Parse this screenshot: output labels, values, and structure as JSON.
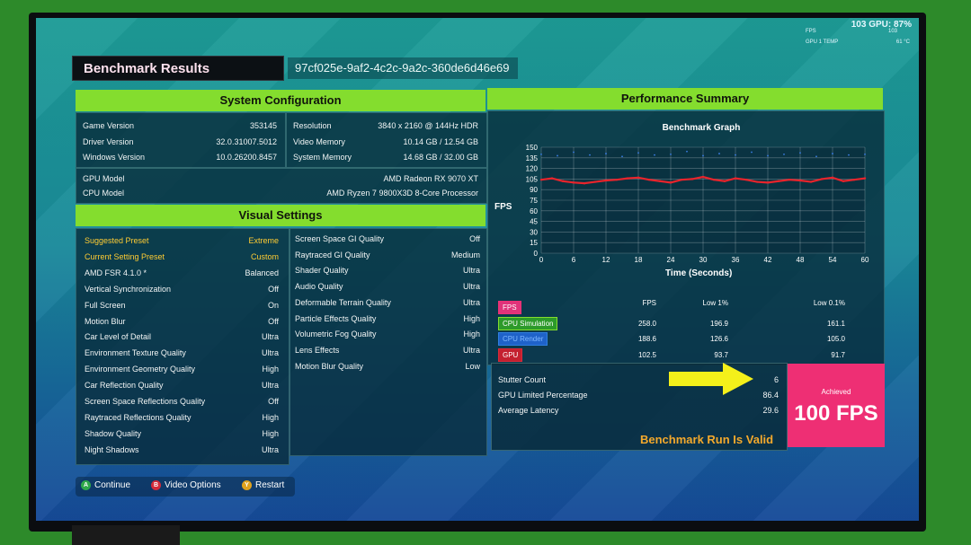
{
  "overlay": {
    "top": "103 GPU: 87%",
    "fps_label": "FPS",
    "fps_value": "103",
    "gpu_temp_label": "GPU 1 TEMP",
    "gpu_temp_value": "61 °C"
  },
  "header": {
    "title": "Benchmark Results",
    "run_id": "97cf025e-9af2-4c2c-9a2c-360de6d46e69"
  },
  "system": {
    "heading": "System Configuration",
    "left": [
      {
        "label": "Game Version",
        "value": "353145"
      },
      {
        "label": "Driver Version",
        "value": "32.0.31007.5012"
      },
      {
        "label": "Windows Version",
        "value": "10.0.26200.8457"
      }
    ],
    "right": [
      {
        "label": "Resolution",
        "value": "3840 x 2160 @ 144Hz HDR"
      },
      {
        "label": "Video Memory",
        "value": "10.14 GB / 12.54 GB"
      },
      {
        "label": "System Memory",
        "value": "14.68 GB / 32.00 GB"
      }
    ],
    "hw": [
      {
        "label": "GPU Model",
        "value": "AMD Radeon RX 9070 XT"
      },
      {
        "label": "CPU Model",
        "value": "AMD Ryzen 7 9800X3D 8-Core Processor"
      }
    ]
  },
  "visual": {
    "heading": "Visual Settings",
    "left": [
      {
        "label": "Suggested Preset",
        "value": "Extreme"
      },
      {
        "label": "Current Setting Preset",
        "value": "Custom"
      },
      {
        "label": "AMD FSR 4.1.0 *",
        "value": "Balanced"
      },
      {
        "label": "Vertical Synchronization",
        "value": "Off"
      },
      {
        "label": "Full Screen",
        "value": "On"
      },
      {
        "label": "Motion Blur",
        "value": "Off"
      },
      {
        "label": "Car Level of Detail",
        "value": "Ultra"
      },
      {
        "label": "Environment Texture Quality",
        "value": "Ultra"
      },
      {
        "label": "Environment Geometry Quality",
        "value": "High"
      },
      {
        "label": "Car Reflection Quality",
        "value": "Ultra"
      },
      {
        "label": "Screen Space Reflections Quality",
        "value": "Off"
      },
      {
        "label": "Raytraced Reflections Quality",
        "value": "High"
      },
      {
        "label": "Shadow Quality",
        "value": "High"
      },
      {
        "label": "Night Shadows",
        "value": "Ultra"
      }
    ],
    "right": [
      {
        "label": "Screen Space GI Quality",
        "value": "Off"
      },
      {
        "label": "Raytraced GI Quality",
        "value": "Medium"
      },
      {
        "label": "Shader Quality",
        "value": "Ultra"
      },
      {
        "label": "Audio Quality",
        "value": "Ultra"
      },
      {
        "label": "Deformable Terrain Quality",
        "value": "Ultra"
      },
      {
        "label": "Particle Effects Quality",
        "value": "High"
      },
      {
        "label": "Volumetric Fog Quality",
        "value": "High"
      },
      {
        "label": "Lens Effects",
        "value": "Ultra"
      },
      {
        "label": "Motion Blur Quality",
        "value": "Low"
      }
    ]
  },
  "performance": {
    "heading": "Performance Summary",
    "graph_title": "Benchmark Graph",
    "ylabel": "FPS",
    "xlabel": "Time (Seconds)",
    "columns": [
      "FPS",
      "Low 1%",
      "Low 0.1%"
    ],
    "rows": [
      {
        "name": "FPS",
        "color": "#ee2f74",
        "values": [
          "",
          "",
          ""
        ]
      },
      {
        "name": "CPU Simulation",
        "color": "#84dd2e",
        "values": [
          "258.0",
          "196.9",
          "161.1"
        ]
      },
      {
        "name": "CPU Render",
        "color": "#2f7fe0",
        "values": [
          "188.6",
          "126.6",
          "105.0"
        ]
      },
      {
        "name": "GPU",
        "color": "#d92a3a",
        "values": [
          "102.5",
          "93.7",
          "91.7"
        ]
      }
    ],
    "stats": [
      {
        "label": "Stutter Count",
        "value": "6"
      },
      {
        "label": "GPU Limited Percentage",
        "value": "86.4"
      },
      {
        "label": "Average Latency",
        "value": "29.6"
      }
    ],
    "achieved_label": "Achieved",
    "achieved_value": "100 FPS",
    "valid_text": "Benchmark Run Is Valid"
  },
  "chart_data": {
    "type": "line",
    "title": "Benchmark Graph",
    "xlabel": "Time (Seconds)",
    "ylabel": "FPS",
    "xlim": [
      0,
      60
    ],
    "ylim": [
      0,
      150
    ],
    "xticks": [
      "0",
      "6",
      "12",
      "18",
      "24",
      "30",
      "36",
      "42",
      "48",
      "54",
      "60"
    ],
    "yticks": [
      "0",
      "15",
      "30",
      "45",
      "60",
      "75",
      "90",
      "105",
      "120",
      "135",
      "150"
    ],
    "grid": true,
    "series": [
      {
        "name": "GPU",
        "color": "#e8242c",
        "x": [
          0,
          2,
          4,
          6,
          8,
          10,
          12,
          14,
          16,
          18,
          20,
          22,
          24,
          26,
          28,
          30,
          32,
          34,
          36,
          38,
          40,
          42,
          44,
          46,
          48,
          50,
          52,
          54,
          56,
          58,
          60
        ],
        "values": [
          104,
          106,
          102,
          100,
          99,
          101,
          103,
          104,
          106,
          107,
          104,
          102,
          100,
          104,
          105,
          108,
          104,
          102,
          106,
          104,
          101,
          100,
          102,
          104,
          103,
          101,
          105,
          107,
          102,
          104,
          106
        ]
      },
      {
        "name": "CPU Render",
        "color": "#3c7fe6",
        "x": [
          0,
          3,
          6,
          9,
          12,
          15,
          18,
          21,
          24,
          27,
          30,
          33,
          36,
          39,
          42,
          45,
          48,
          51,
          54,
          57,
          60
        ],
        "values": [
          140,
          138,
          143,
          139,
          141,
          137,
          142,
          139,
          140,
          144,
          138,
          141,
          139,
          143,
          138,
          140,
          142,
          137,
          141,
          139,
          140
        ]
      }
    ]
  },
  "footer": {
    "continue_label": "Continue",
    "video_label": "Video Options",
    "restart_label": "Restart",
    "a_glyph": "A",
    "b_glyph": "B",
    "y_glyph": "Y"
  },
  "colors": {
    "accent": "#84dd2e",
    "pink": "#ee2f74",
    "valid": "#f4a92c"
  }
}
